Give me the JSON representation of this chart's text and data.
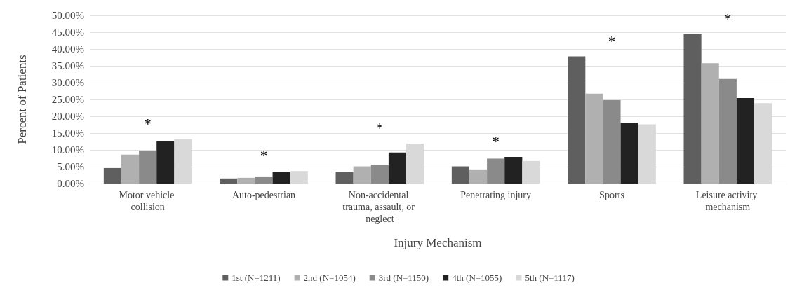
{
  "chart_data": {
    "type": "bar",
    "xlabel": "Injury Mechanism",
    "ylabel": "Percent of Patients",
    "categories": [
      "Motor vehicle collision",
      "Auto-pedestrian",
      "Non-accidental trauma, assault, or neglect",
      "Penetrating injury",
      "Sports",
      "Leisure activity mechanism"
    ],
    "series": [
      {
        "name": "1st (N=1211)",
        "color": "#5f5f5f",
        "values": [
          4.6,
          1.5,
          3.5,
          5.1,
          37.8,
          44.4
        ]
      },
      {
        "name": "2nd (N=1054)",
        "color": "#b0b0b0",
        "values": [
          8.6,
          1.7,
          5.1,
          4.2,
          26.7,
          35.8
        ]
      },
      {
        "name": "3rd (N=1150)",
        "color": "#8a8a8a",
        "values": [
          9.8,
          2.1,
          5.6,
          7.4,
          24.8,
          31.1
        ]
      },
      {
        "name": "4th (N=1055)",
        "color": "#222222",
        "values": [
          12.6,
          3.5,
          9.2,
          7.9,
          18.1,
          25.4
        ]
      },
      {
        "name": "5th (N=1117)",
        "color": "#d9d9d9",
        "values": [
          13.1,
          3.7,
          11.8,
          6.7,
          17.6,
          23.9
        ]
      }
    ],
    "ylim": [
      0,
      50
    ],
    "yticks": [
      {
        "value": 0,
        "label": "0.00%"
      },
      {
        "value": 5,
        "label": "5.00%"
      },
      {
        "value": 10,
        "label": "10.00%"
      },
      {
        "value": 15,
        "label": "15.00%"
      },
      {
        "value": 20,
        "label": "20.00%"
      },
      {
        "value": 25,
        "label": "25.00%"
      },
      {
        "value": 30,
        "label": "30.00%"
      },
      {
        "value": 35,
        "label": "35.00%"
      },
      {
        "value": 40,
        "label": "40.00%"
      },
      {
        "value": 45,
        "label": "45.00%"
      },
      {
        "value": 50,
        "label": "50.00%"
      }
    ],
    "annotations": [
      "*",
      "*",
      "*",
      "*",
      "*",
      "*"
    ],
    "grid": "y",
    "legend": "bottom"
  }
}
